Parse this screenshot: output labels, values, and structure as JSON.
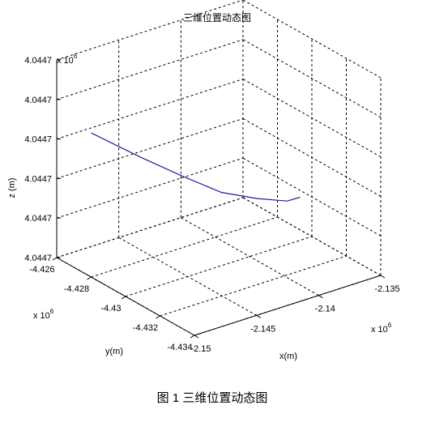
{
  "chart_data": {
    "type": "line",
    "projection": "3d",
    "title": "三维位置动态图",
    "xlabel": "x(m)",
    "ylabel": "y(m)",
    "zlabel": "z (m)",
    "x_exponent_label": "x 10",
    "x_exponent": "6",
    "y_exponent_label": "x 10",
    "y_exponent": "6",
    "z_exponent_label": "x 10",
    "z_exponent": "6",
    "xlim": [
      -2.15,
      -2.135
    ],
    "ylim": [
      -4.434,
      -4.426
    ],
    "zlim": [
      0,
      5
    ],
    "x_ticks": [
      {
        "value": -2.15,
        "label": "-2.15"
      },
      {
        "value": -2.145,
        "label": "-2.145"
      },
      {
        "value": -2.14,
        "label": "-2.14"
      },
      {
        "value": -2.135,
        "label": "-2.135"
      }
    ],
    "y_ticks": [
      {
        "value": -4.434,
        "label": "-4.434"
      },
      {
        "value": -4.432,
        "label": "-4.432"
      },
      {
        "value": -4.43,
        "label": "-4.43"
      },
      {
        "value": -4.428,
        "label": "-4.428"
      },
      {
        "value": -4.426,
        "label": "-4.426"
      }
    ],
    "z_ticks": [
      {
        "value": 0,
        "label": "4.0447"
      },
      {
        "value": 1,
        "label": "4.0447"
      },
      {
        "value": 2,
        "label": "4.0447"
      },
      {
        "value": 3,
        "label": "4.0447"
      },
      {
        "value": 4,
        "label": "4.0447"
      },
      {
        "value": 5,
        "label": "4.0447"
      }
    ],
    "grid": true,
    "series": [
      {
        "color": "#1f1f9f",
        "points": [
          {
            "x": -2.1475,
            "y": -4.4262,
            "z": 2.95
          },
          {
            "x": -2.1465,
            "y": -4.4283,
            "z": 2.76
          },
          {
            "x": -2.1455,
            "y": -4.43,
            "z": 2.6
          },
          {
            "x": -2.1445,
            "y": -4.4316,
            "z": 2.47
          },
          {
            "x": -2.143,
            "y": -4.4326,
            "z": 2.41
          },
          {
            "x": -2.1417,
            "y": -4.4334,
            "z": 2.41
          },
          {
            "x": -2.1408,
            "y": -4.4335,
            "z": 2.44
          }
        ]
      }
    ]
  },
  "caption": "图 1  三维位置动态图"
}
